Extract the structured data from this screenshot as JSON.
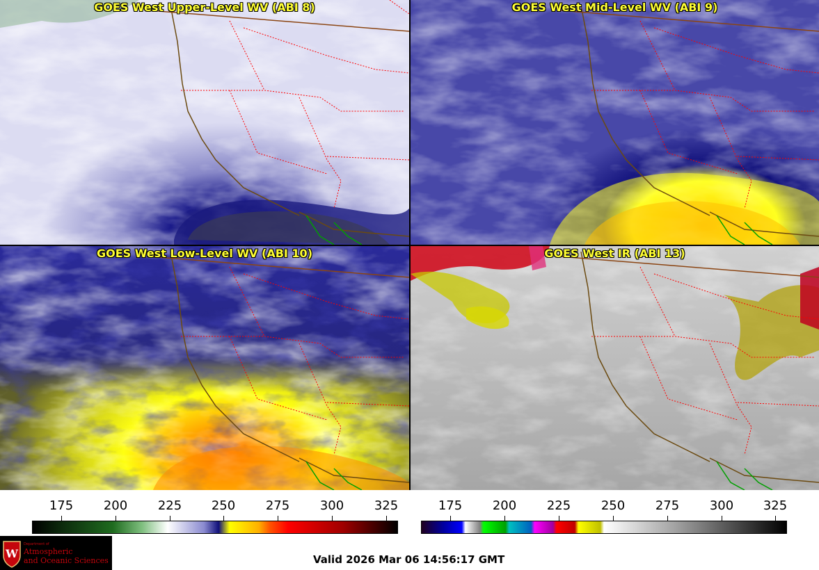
{
  "panels": [
    {
      "title": "GOES West Upper-Level WV (ABI 8)"
    },
    {
      "title": "GOES West Mid-Level WV (ABI 9)"
    },
    {
      "title": "GOES West Low-Level WV (ABI 10)"
    },
    {
      "title": "GOES West IR (ABI 13)"
    }
  ],
  "colorbars": {
    "left": {
      "ticks": [
        "175",
        "200",
        "225",
        "250",
        "275",
        "300",
        "325"
      ]
    },
    "right": {
      "ticks": [
        "175",
        "200",
        "225",
        "250",
        "275",
        "300",
        "325"
      ]
    }
  },
  "logo": {
    "line1": "Department of",
    "line2": "Atmospheric",
    "line3": "and Oceanic Sciences"
  },
  "footer": {
    "valid": "Valid 2026 Mar 06 14:56:17 GMT"
  },
  "colors": {
    "title": "#ffff33",
    "border_state": "#ff0000",
    "coast": "#6b4a10",
    "mexico": "#00a000",
    "logo_red": "#c5050c"
  }
}
